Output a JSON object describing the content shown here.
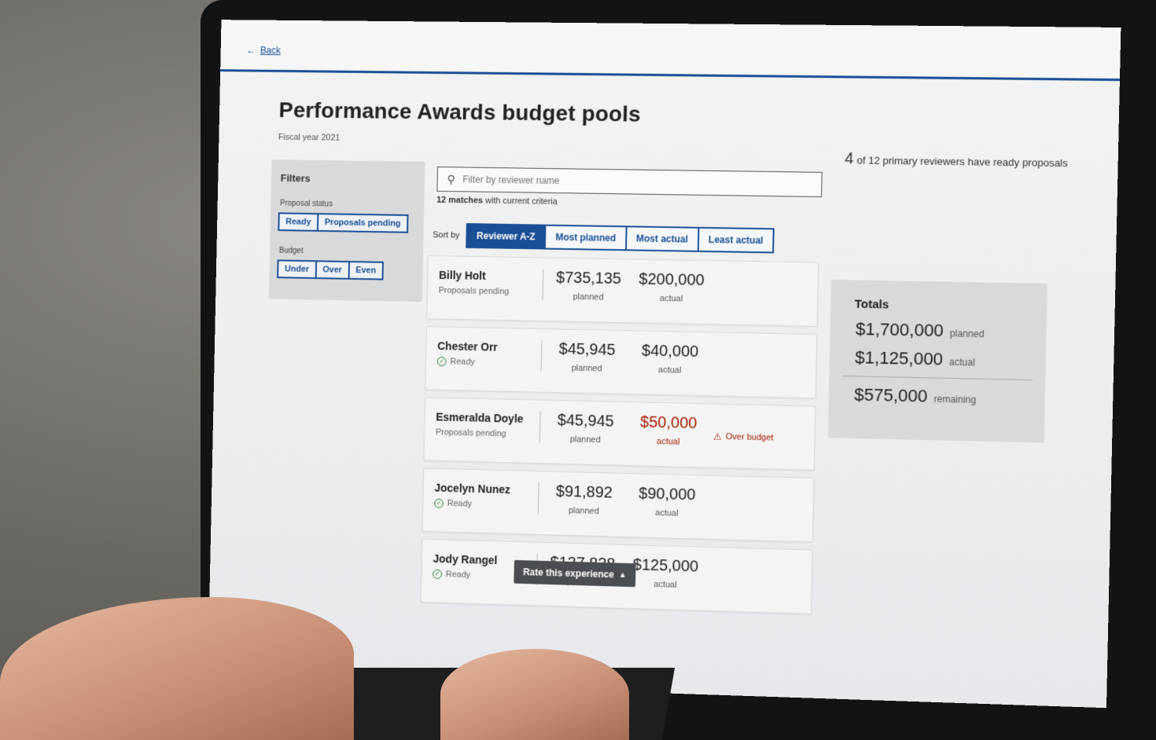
{
  "header": {
    "back_label": "Back"
  },
  "page": {
    "title": "Performance Awards budget pools",
    "fiscal_year": "Fiscal year 2021",
    "ready_count": "4",
    "ready_text": "of 12 primary reviewers have ready proposals"
  },
  "filters": {
    "title": "Filters",
    "proposal_status_label": "Proposal status",
    "proposal_status_options": [
      "Ready",
      "Proposals pending"
    ],
    "budget_label": "Budget",
    "budget_options": [
      "Under",
      "Over",
      "Even"
    ]
  },
  "search": {
    "placeholder": "Filter by reviewer name",
    "matches_count": "12 matches",
    "matches_text": "with current criteria"
  },
  "sort": {
    "label": "Sort by",
    "options": [
      "Reviewer A-Z",
      "Most planned",
      "Most actual",
      "Least actual"
    ],
    "active": "Reviewer A-Z"
  },
  "reviewers": [
    {
      "name": "Billy Holt",
      "status": "Proposals pending",
      "planned": "$735,135",
      "actual": "$200,000",
      "planned_label": "planned",
      "actual_label": "actual"
    },
    {
      "name": "Chester Orr",
      "status": "Ready",
      "planned": "$45,945",
      "actual": "$40,000",
      "planned_label": "planned",
      "actual_label": "actual"
    },
    {
      "name": "Esmeralda Doyle",
      "status": "Proposals pending",
      "planned": "$45,945",
      "actual": "$50,000",
      "planned_label": "planned",
      "actual_label": "actual",
      "warning": "Over budget"
    },
    {
      "name": "Jocelyn Nunez",
      "status": "Ready",
      "planned": "$91,892",
      "actual": "$90,000",
      "planned_label": "planned",
      "actual_label": "actual"
    },
    {
      "name": "Jody Rangel",
      "status": "Ready",
      "planned": "$137,838",
      "actual": "$125,000",
      "planned_label": "planned",
      "actual_label": "actual"
    }
  ],
  "totals": {
    "title": "Totals",
    "planned": "$1,700,000",
    "planned_label": "planned",
    "actual": "$1,125,000",
    "actual_label": "actual",
    "remaining": "$575,000",
    "remaining_label": "remaining"
  },
  "feedback": {
    "label": "Rate this experience"
  },
  "colors": {
    "accent": "#1a4f96",
    "over_budget": "#a61c00",
    "ready": "#2e8540"
  }
}
